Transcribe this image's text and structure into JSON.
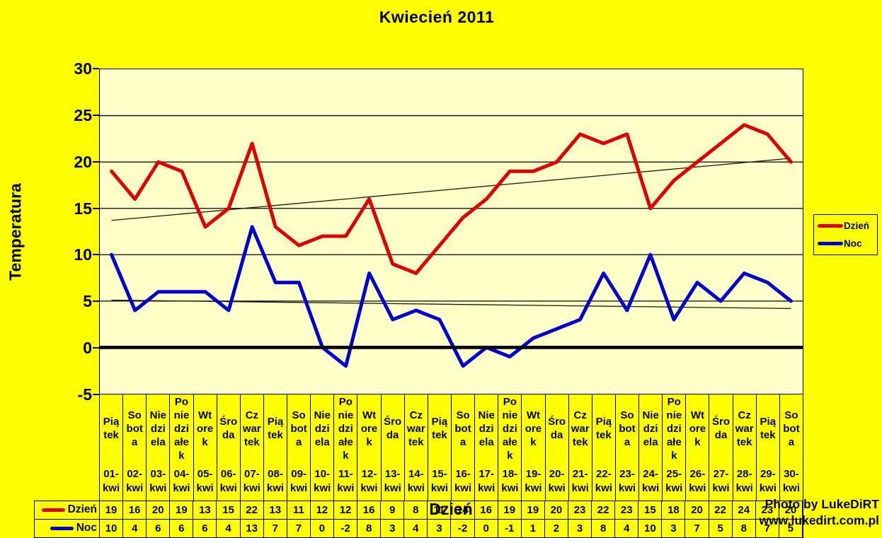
{
  "title": "Kwiecień 2011",
  "y_axis": {
    "label": "Temperatura",
    "ticks": [
      30,
      25,
      20,
      15,
      10,
      5,
      0,
      -5
    ]
  },
  "x_axis": {
    "label": "Dzień"
  },
  "legend": {
    "position": "right",
    "items": [
      {
        "label": "Dzień",
        "color": "#DF0000"
      },
      {
        "label": "Noc",
        "color": "#0000CD"
      }
    ]
  },
  "watermark": {
    "line1": "Photo by LukeDiRT",
    "line2": "www.lukedirt.com.pl"
  },
  "colors": {
    "page_background": "#FFFF00",
    "plot_background": "#FFFFC9",
    "dzien_line": "#DF0000",
    "noc_line": "#0000CD",
    "gridline": "#000000",
    "trendline": "#1A1A00"
  },
  "chart_data": {
    "type": "line",
    "title": "Kwiecień 2011",
    "xlabel": "Dzień",
    "ylabel": "Temperatura",
    "ylim": [
      -5,
      30
    ],
    "ytick_step": 5,
    "grid": true,
    "legend_position": "right",
    "data_table_shown": true,
    "categories": [
      "01-kwi",
      "02-kwi",
      "03-kwi",
      "04-kwi",
      "05-kwi",
      "06-kwi",
      "07-kwi",
      "08-kwi",
      "09-kwi",
      "10-kwi",
      "11-kwi",
      "12-kwi",
      "13-kwi",
      "14-kwi",
      "15-kwi",
      "16-kwi",
      "17-kwi",
      "18-kwi",
      "19-kwi",
      "20-kwi",
      "21-kwi",
      "22-kwi",
      "23-kwi",
      "24-kwi",
      "25-kwi",
      "26-kwi",
      "27-kwi",
      "28-kwi",
      "29-kwi",
      "30-kwi"
    ],
    "weekdays": [
      "Piątek",
      "Sobota",
      "Niedziela",
      "Poniedziałek",
      "Wtorek",
      "Środa",
      "Czwartek",
      "Piątek",
      "Sobota",
      "Niedziela",
      "Poniedziałek",
      "Wtorek",
      "Środa",
      "Czwartek",
      "Piątek",
      "Sobota",
      "Niedziela",
      "Poniedziałek",
      "Wtorek",
      "Środa",
      "Czwartek",
      "Piątek",
      "Sobota",
      "Niedziela",
      "Poniedziałek",
      "Wtorek",
      "Środa",
      "Czwartek",
      "Piątek",
      "Sobota"
    ],
    "series": [
      {
        "name": "Dzień",
        "color": "#DF0000",
        "values": [
          19,
          16,
          20,
          19,
          13,
          15,
          22,
          13,
          11,
          12,
          12,
          16,
          9,
          8,
          11,
          14,
          16,
          19,
          19,
          20,
          23,
          22,
          23,
          15,
          18,
          20,
          22,
          24,
          23,
          20
        ]
      },
      {
        "name": "Noc",
        "color": "#0000CD",
        "values": [
          10,
          4,
          6,
          6,
          6,
          4,
          13,
          7,
          7,
          0,
          -2,
          8,
          3,
          4,
          3,
          -2,
          0,
          -1,
          1,
          2,
          3,
          8,
          4,
          10,
          3,
          7,
          5,
          8,
          7,
          5
        ]
      }
    ],
    "trendlines": [
      {
        "series": "Dzień",
        "start_value": 13.7,
        "end_value": 20.4
      },
      {
        "series": "Noc",
        "start_value": 5.1,
        "end_value": 4.2
      }
    ]
  }
}
